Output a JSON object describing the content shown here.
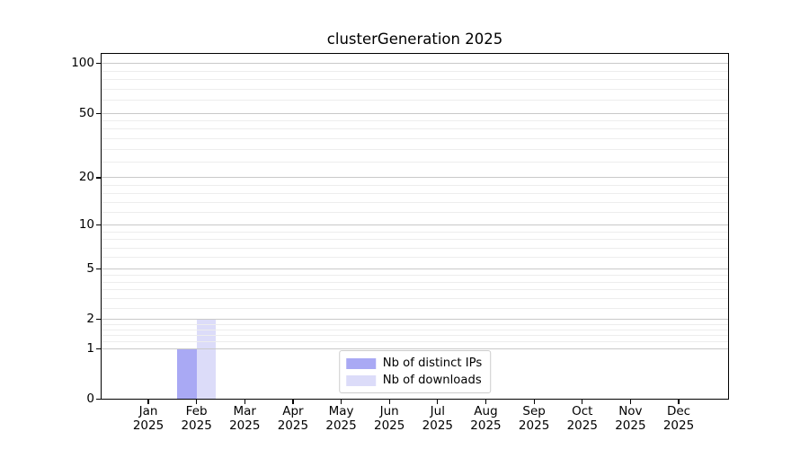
{
  "chart_data": {
    "type": "bar",
    "title": "clusterGeneration 2025",
    "categories": [
      "Jan 2025",
      "Feb 2025",
      "Mar 2025",
      "Apr 2025",
      "May 2025",
      "Jun 2025",
      "Jul 2025",
      "Aug 2025",
      "Sep 2025",
      "Oct 2025",
      "Nov 2025",
      "Dec 2025"
    ],
    "series": [
      {
        "name": "Nb of distinct IPs",
        "color": "#a9a9f4",
        "values": [
          0,
          1,
          0,
          0,
          0,
          0,
          0,
          0,
          0,
          0,
          0,
          0
        ]
      },
      {
        "name": "Nb of downloads",
        "color": "#dcdcf9",
        "values": [
          0,
          2,
          0,
          0,
          0,
          0,
          0,
          0,
          0,
          0,
          0,
          0
        ]
      }
    ],
    "y_axis": {
      "scale": "log1p",
      "ticks": [
        0,
        1,
        2,
        5,
        10,
        20,
        50,
        100
      ],
      "minor_ticks": [
        1.2,
        1.4,
        1.6,
        1.8,
        2.5,
        3,
        3.5,
        4,
        4.5,
        6,
        7,
        8,
        9,
        12,
        14,
        16,
        18,
        25,
        30,
        35,
        40,
        45,
        60,
        70,
        80,
        90
      ],
      "range": [
        0,
        113
      ]
    },
    "legend": {
      "position": "lower center"
    },
    "colors": {
      "grid_major": "#c9c9c9",
      "grid_minor": "#ededed",
      "axis": "#000000",
      "text": "#000000"
    }
  }
}
